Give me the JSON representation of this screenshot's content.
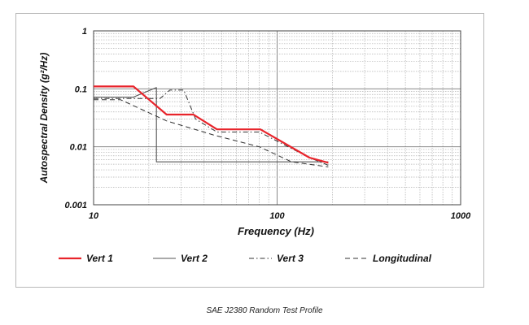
{
  "chart_data": {
    "type": "line",
    "title": "",
    "xlabel": "Frequency (Hz)",
    "ylabel": "Autospectral Density (g²/Hz)",
    "xscale": "log",
    "yscale": "log",
    "xlim": [
      10,
      1000
    ],
    "ylim": [
      0.001,
      1
    ],
    "grid": true,
    "x_ticks": [
      {
        "value": 10,
        "label": "10"
      },
      {
        "value": 100,
        "label": "100"
      },
      {
        "value": 1000,
        "label": "1000"
      }
    ],
    "y_ticks": [
      {
        "value": 1,
        "label": "1"
      },
      {
        "value": 0.1,
        "label": "0.1"
      },
      {
        "value": 0.01,
        "label": "0.01"
      },
      {
        "value": 0.001,
        "label": "0.001"
      }
    ],
    "legend_position": "bottom",
    "series": [
      {
        "name": "Vert 1",
        "color": "#e8242b",
        "style": "solid-thick",
        "x": [
          10,
          16.5,
          19,
          25,
          35,
          47,
          81,
          150,
          190
        ],
        "y": [
          0.11,
          0.11,
          0.075,
          0.036,
          0.036,
          0.02,
          0.02,
          0.0065,
          0.0053
        ]
      },
      {
        "name": "Vert 2",
        "color": "#555555",
        "style": "solid",
        "x": [
          10,
          16.5,
          22,
          22,
          190
        ],
        "y": [
          0.072,
          0.072,
          0.105,
          0.0055,
          0.0055
        ]
      },
      {
        "name": "Vert 3",
        "color": "#333333",
        "style": "dashdot",
        "x": [
          10,
          23,
          26,
          31,
          36,
          47,
          80,
          150,
          190
        ],
        "y": [
          0.068,
          0.068,
          0.095,
          0.095,
          0.03,
          0.018,
          0.018,
          0.0065,
          0.0048
        ]
      },
      {
        "name": "Longitudinal",
        "color": "#333333",
        "style": "dashed",
        "x": [
          10,
          14,
          25,
          45,
          80,
          120,
          190
        ],
        "y": [
          0.065,
          0.065,
          0.028,
          0.016,
          0.01,
          0.0055,
          0.0045
        ]
      }
    ]
  },
  "caption": "SAE J2380 Random Test Profile"
}
